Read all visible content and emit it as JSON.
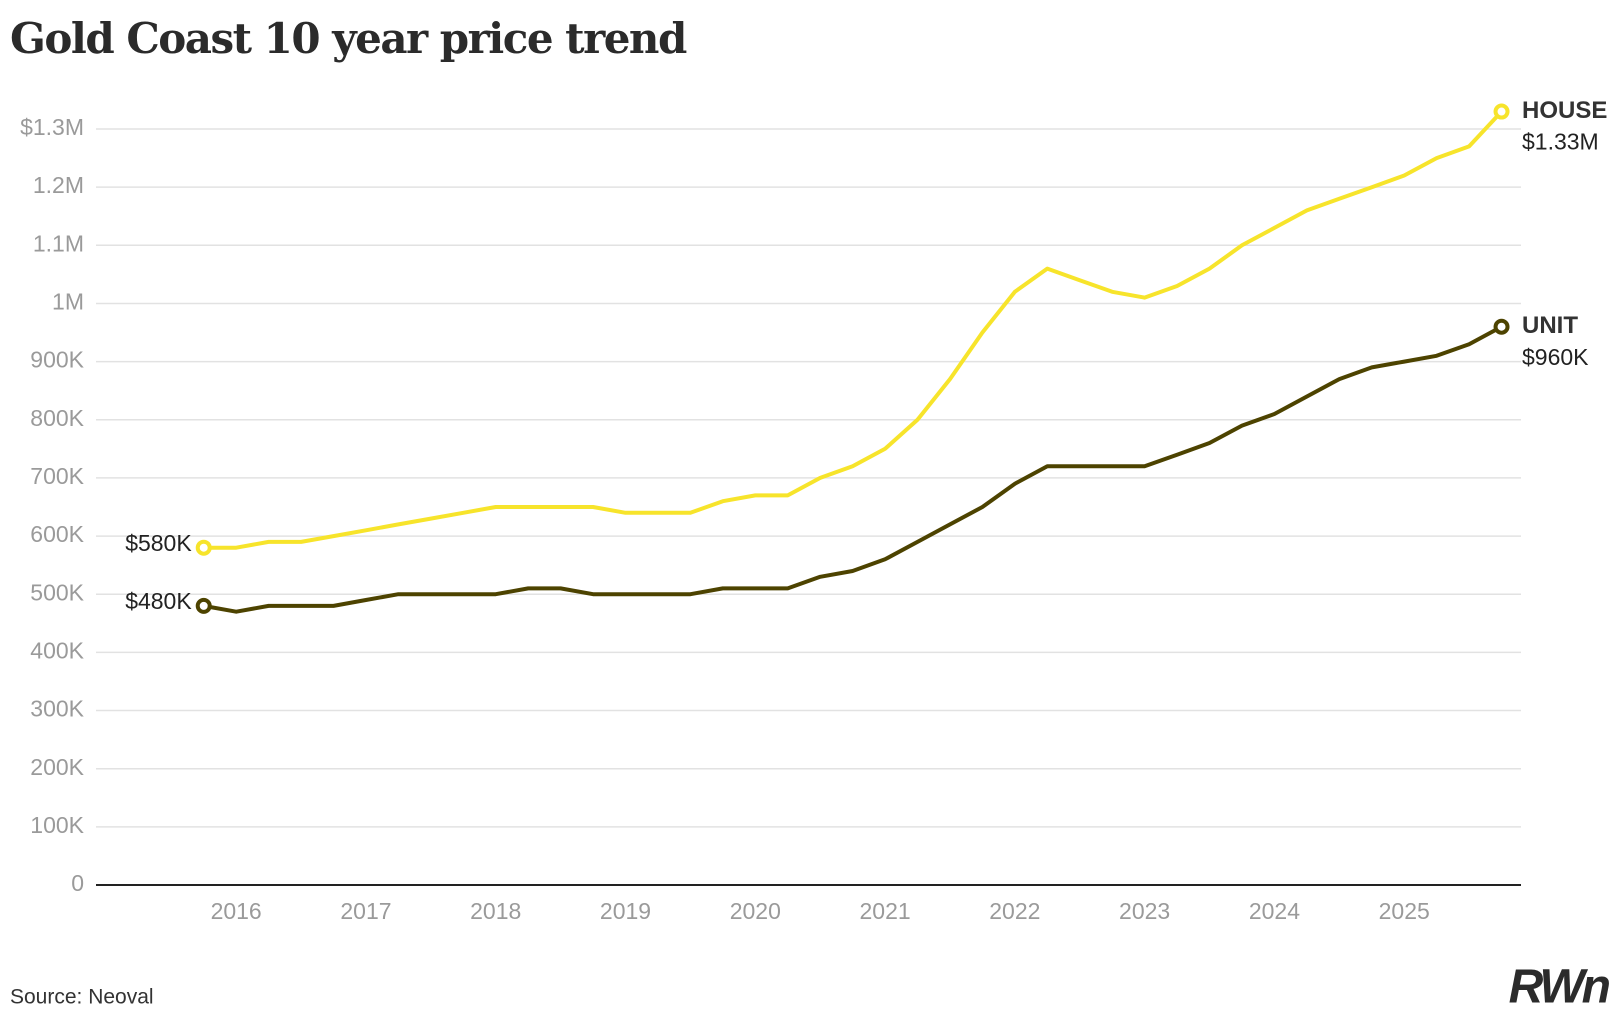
{
  "chart_data": {
    "type": "line",
    "title": "Gold Coast 10 year price trend",
    "source": "Source: Neoval",
    "logo": "RWn",
    "x": [
      2015.75,
      2016,
      2016.25,
      2016.5,
      2016.75,
      2017,
      2017.25,
      2017.5,
      2017.75,
      2018,
      2018.25,
      2018.5,
      2018.75,
      2019,
      2019.25,
      2019.5,
      2019.75,
      2020,
      2020.25,
      2020.5,
      2020.75,
      2021,
      2021.25,
      2021.5,
      2021.75,
      2022,
      2022.25,
      2022.5,
      2022.75,
      2023,
      2023.25,
      2023.5,
      2023.75,
      2024,
      2024.25,
      2024.5,
      2024.75,
      2025,
      2025.25,
      2025.5,
      2025.75
    ],
    "xlim": [
      2014.92,
      2025.9
    ],
    "xticks": [
      2016,
      2017,
      2018,
      2019,
      2020,
      2021,
      2022,
      2023,
      2024,
      2025
    ],
    "ylim": [
      0,
      1300000
    ],
    "yticks": [
      0,
      {
        "value": 100000,
        "label": "100K"
      },
      {
        "value": 200000,
        "label": "200K"
      },
      {
        "value": 300000,
        "label": "300K"
      },
      {
        "value": 400000,
        "label": "400K"
      },
      {
        "value": 500000,
        "label": "500K"
      },
      {
        "value": 600000,
        "label": "600K"
      },
      {
        "value": 700000,
        "label": "700K"
      },
      {
        "value": 800000,
        "label": "800K"
      },
      {
        "value": 900000,
        "label": "900K"
      },
      {
        "value": 1000000,
        "label": "1M"
      },
      {
        "value": 1100000,
        "label": "1.1M"
      },
      {
        "value": 1200000,
        "label": "1.2M"
      },
      {
        "value": 1300000,
        "label": "$1.3M"
      }
    ],
    "grid": true,
    "series": [
      {
        "name": "HOUSE",
        "color": "#f7e42b",
        "values": [
          580000,
          580000,
          590000,
          590000,
          600000,
          610000,
          620000,
          630000,
          640000,
          650000,
          650000,
          650000,
          650000,
          640000,
          640000,
          640000,
          660000,
          670000,
          670000,
          700000,
          720000,
          750000,
          800000,
          870000,
          950000,
          1020000,
          1060000,
          1040000,
          1020000,
          1010000,
          1030000,
          1060000,
          1100000,
          1130000,
          1160000,
          1180000,
          1200000,
          1220000,
          1250000,
          1270000,
          1330000
        ],
        "value_labels": [
          "$580K",
          null,
          null,
          null,
          null,
          null,
          null,
          null,
          null,
          null,
          null,
          null,
          null,
          null,
          null,
          null,
          null,
          null,
          null,
          null,
          null,
          null,
          null,
          null,
          null,
          null,
          null,
          null,
          null,
          null,
          null,
          null,
          null,
          null,
          null,
          null,
          null,
          null,
          null,
          null,
          "$1.33M"
        ]
      },
      {
        "name": "UNIT",
        "color": "#4d4300",
        "values": [
          480000,
          470000,
          480000,
          480000,
          480000,
          490000,
          500000,
          500000,
          500000,
          500000,
          510000,
          510000,
          500000,
          500000,
          500000,
          500000,
          510000,
          510000,
          510000,
          530000,
          540000,
          560000,
          590000,
          620000,
          650000,
          690000,
          720000,
          720000,
          720000,
          720000,
          740000,
          760000,
          790000,
          810000,
          840000,
          870000,
          890000,
          900000,
          910000,
          930000,
          960000
        ],
        "value_labels": [
          "$480K",
          null,
          null,
          null,
          null,
          null,
          null,
          null,
          null,
          null,
          null,
          null,
          null,
          null,
          null,
          null,
          null,
          null,
          null,
          null,
          null,
          null,
          null,
          null,
          null,
          null,
          null,
          null,
          null,
          null,
          null,
          null,
          null,
          null,
          null,
          null,
          null,
          null,
          null,
          null,
          "$960K"
        ]
      }
    ]
  }
}
